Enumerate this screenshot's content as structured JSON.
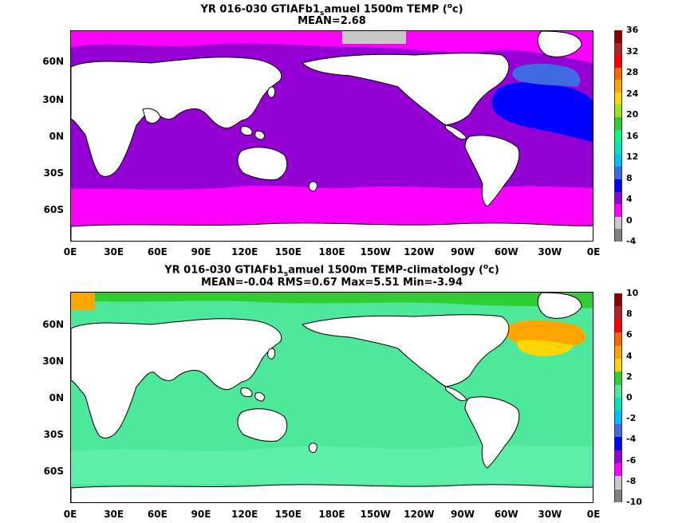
{
  "top": {
    "title_pre": "YR 016-030 GTIAFb1",
    "title_sub": "s",
    "title_post": "amuel 1500m TEMP (",
    "title_sup": "o",
    "title_end": "c)",
    "mean_line": "MEAN=2.68",
    "colorbar_labels": [
      "36",
      "32",
      "28",
      "24",
      "20",
      "16",
      "12",
      "8",
      "4",
      "0",
      "-4"
    ]
  },
  "bottom": {
    "title_pre": "YR 016-030 GTIAFb1",
    "title_sub": "s",
    "title_post": "amuel 1500m TEMP-climatology (",
    "title_sup": "o",
    "title_end": "c)",
    "stats_line": "MEAN=-0.04   RMS=0.67   Max=5.51   Min=-3.94",
    "colorbar_labels": [
      "10",
      "8",
      "6",
      "4",
      "2",
      "0",
      "-2",
      "-4",
      "-6",
      "-8",
      "-10"
    ]
  },
  "axes": {
    "lat_labels": [
      "60N",
      "30N",
      "0N",
      "30S",
      "60S"
    ],
    "lon_labels": [
      "0E",
      "30E",
      "60E",
      "90E",
      "120E",
      "150E",
      "180E",
      "150W",
      "120W",
      "90W",
      "60W",
      "30W",
      "0E"
    ]
  },
  "colors": {
    "top_scale": [
      "#808080",
      "#c8c8c8",
      "#ff00ff",
      "#9400d3",
      "#0000ff",
      "#4169e1",
      "#00bfff",
      "#00e5c0",
      "#00ff7f",
      "#32cd32",
      "#a0e020",
      "#ffd700",
      "#ffa500",
      "#ff6600",
      "#ff0000",
      "#b22222",
      "#8b0000"
    ],
    "bottom_scale": [
      "#808080",
      "#c8c8c8",
      "#ff00ff",
      "#9400d3",
      "#0000ff",
      "#4169e1",
      "#00bfff",
      "#00e5c0",
      "#4de89a",
      "#32cd32",
      "#ffd700",
      "#ffa500",
      "#ff6600",
      "#ff0000",
      "#b22222",
      "#8b0000"
    ],
    "land": "#ffffff"
  }
}
